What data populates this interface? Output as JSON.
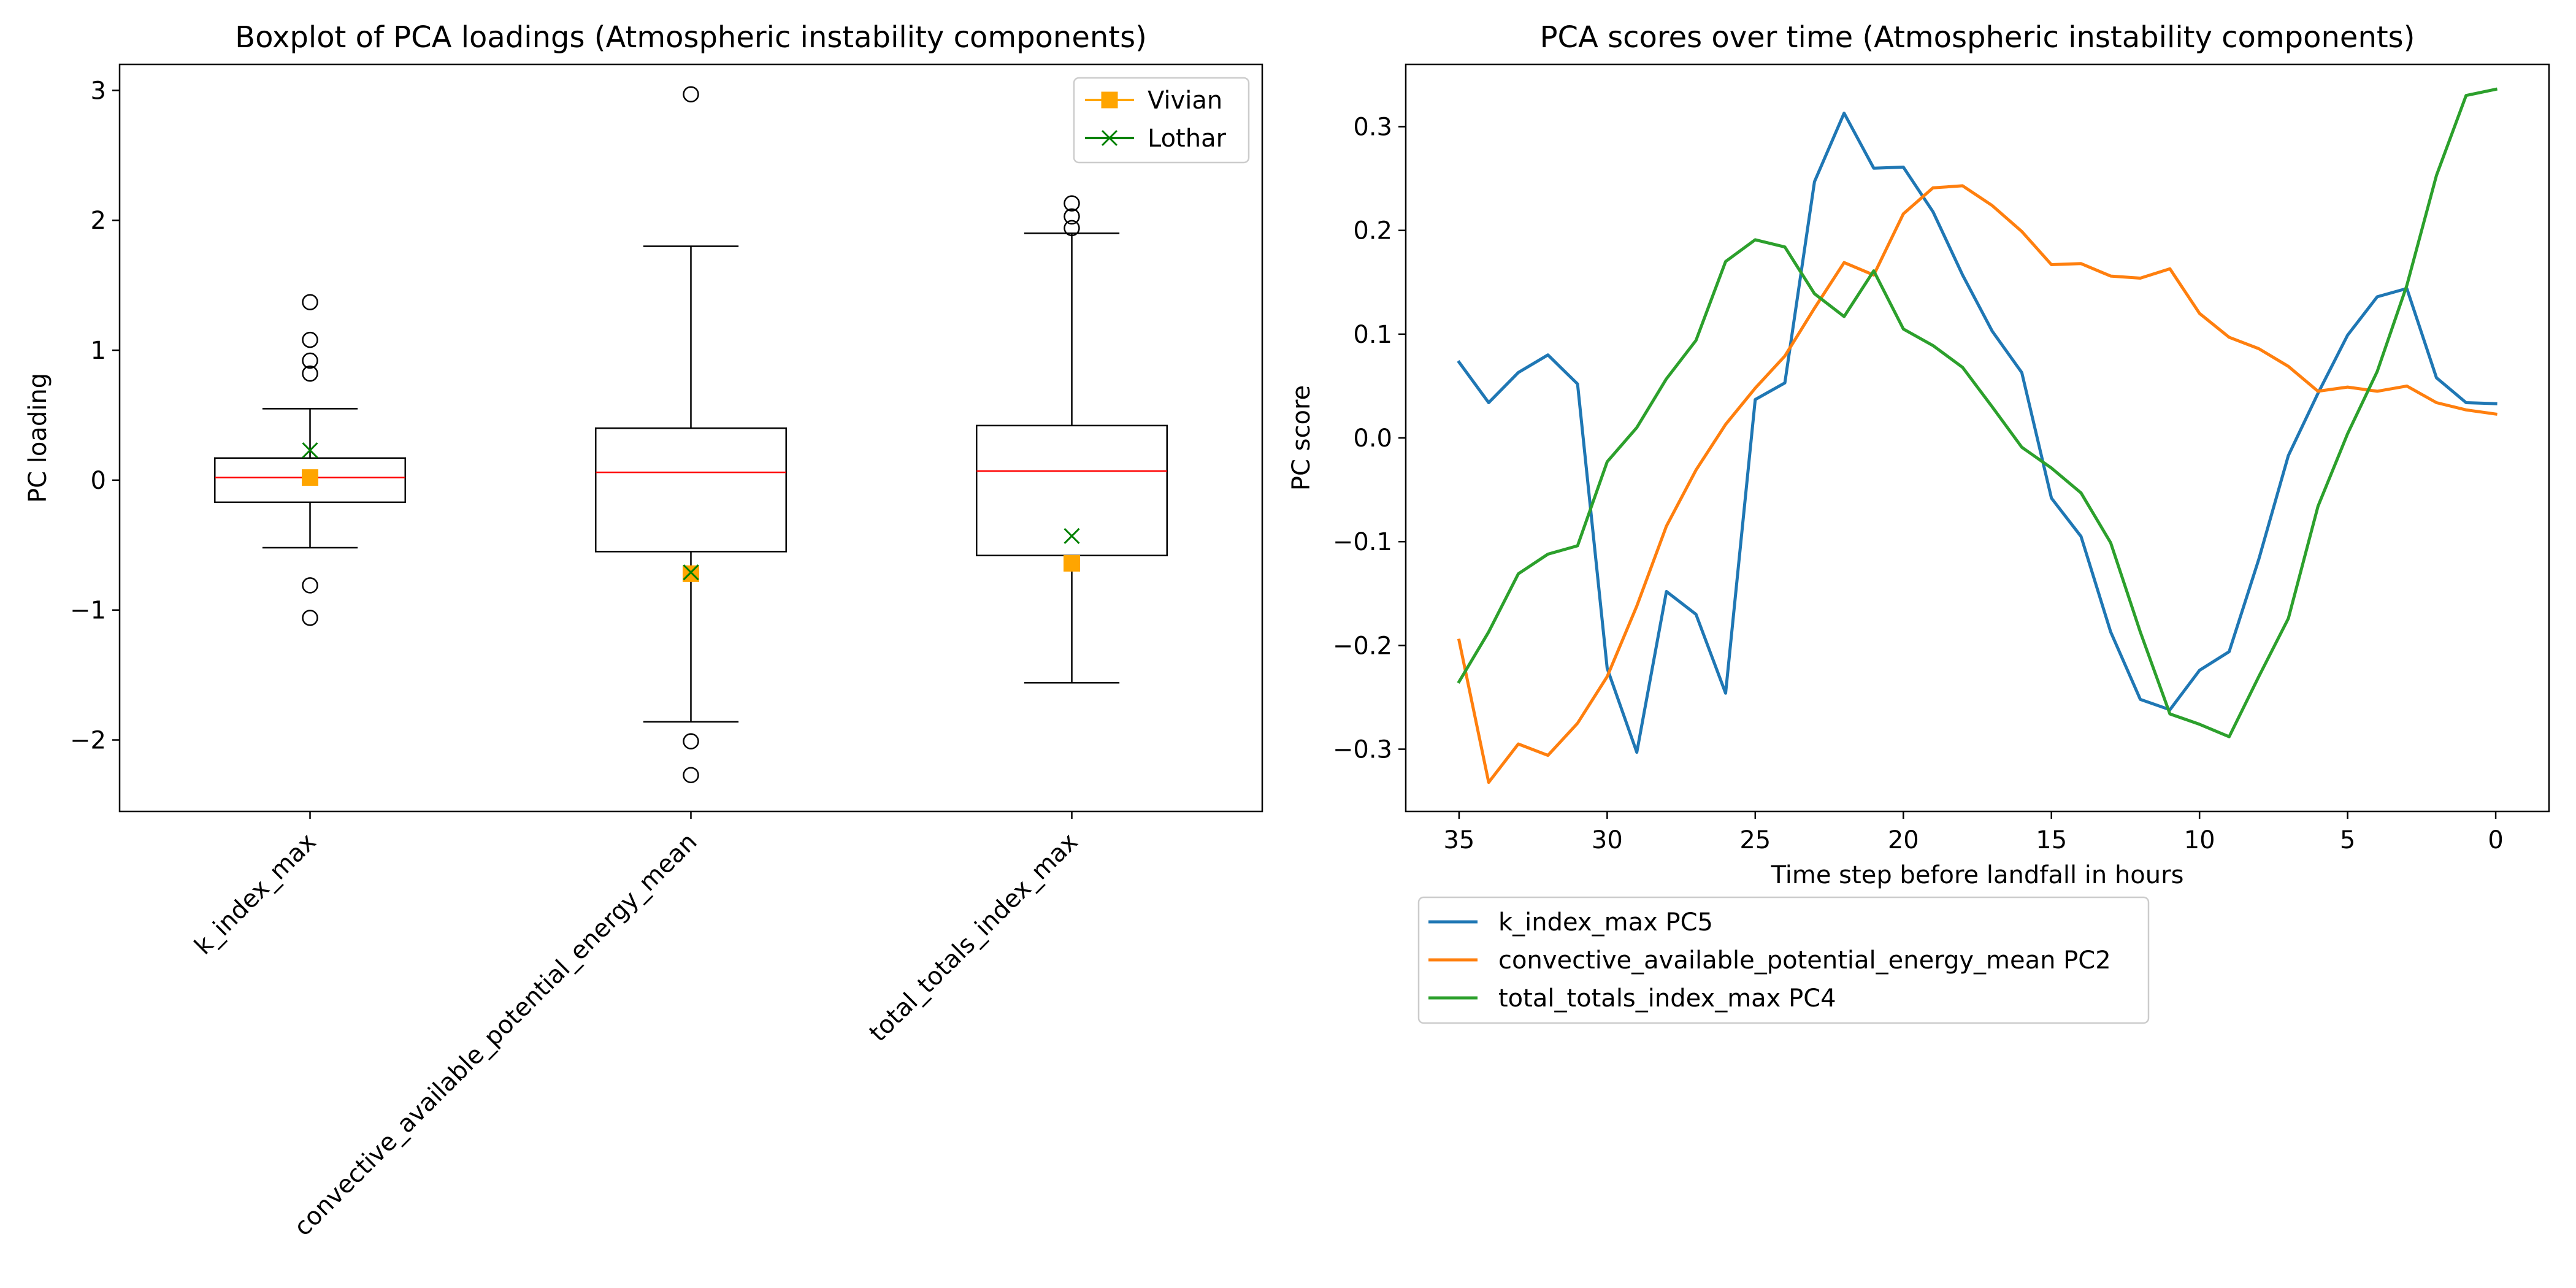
{
  "chart_data": [
    {
      "type": "box",
      "title": "Boxplot of PCA loadings (Atmospheric instability components)",
      "xlabel": "",
      "ylabel": "PC loading",
      "ylim": [
        -2.55,
        3.2
      ],
      "yticks": [
        -2,
        -1,
        0,
        1,
        2,
        3
      ],
      "ytick_labels": [
        "−2",
        "−1",
        "0",
        "1",
        "2",
        "3"
      ],
      "grid": false,
      "legend_position": "top-right",
      "categories": [
        "k_index_max",
        "convective_available_potential_energy_mean",
        "total_totals_index_max"
      ],
      "boxes": [
        {
          "whisker_low": -0.52,
          "q1": -0.17,
          "median": 0.02,
          "q3": 0.17,
          "whisker_high": 0.55,
          "fliers": [
            1.37,
            1.08,
            0.92,
            0.82,
            -0.81,
            -1.06
          ]
        },
        {
          "whisker_low": -1.86,
          "q1": -0.55,
          "median": 0.06,
          "q3": 0.4,
          "whisker_high": 1.8,
          "fliers": [
            2.97,
            -2.01,
            -2.27
          ]
        },
        {
          "whisker_low": -1.56,
          "q1": -0.58,
          "median": 0.07,
          "q3": 0.42,
          "whisker_high": 1.9,
          "fliers": [
            2.13,
            2.03,
            1.94
          ]
        }
      ],
      "series": [
        {
          "name": "Vivian",
          "color": "#ffa500",
          "marker": "square",
          "values": [
            0.02,
            -0.72,
            -0.64
          ]
        },
        {
          "name": "Lothar",
          "color": "#008000",
          "marker": "x",
          "values": [
            0.23,
            -0.71,
            -0.43
          ]
        }
      ],
      "colors": {
        "box": "#000000",
        "median": "#ff0000"
      }
    },
    {
      "type": "line",
      "title": "PCA scores over time (Atmospheric instability components)",
      "xlabel": "Time step before landfall in hours",
      "ylabel": "PC score",
      "xlim": [
        36.8,
        -1.8
      ],
      "ylim": [
        -0.36,
        0.36
      ],
      "xticks": [
        35,
        30,
        25,
        20,
        15,
        10,
        5,
        0
      ],
      "xtick_labels": [
        "35",
        "30",
        "25",
        "20",
        "15",
        "10",
        "5",
        "0"
      ],
      "yticks": [
        -0.3,
        -0.2,
        -0.1,
        0.0,
        0.1,
        0.2,
        0.3
      ],
      "ytick_labels": [
        "−0.3",
        "−0.2",
        "−0.1",
        "0.0",
        "0.1",
        "0.2",
        "0.3"
      ],
      "grid": false,
      "legend_position": "below",
      "x": [
        35,
        34,
        33,
        32,
        31,
        30,
        29,
        28,
        27,
        26,
        25,
        24,
        23,
        22,
        21,
        20,
        19,
        18,
        17,
        16,
        15,
        14,
        13,
        12,
        11,
        10,
        9,
        8,
        7,
        6,
        5,
        4,
        3,
        2,
        1,
        0
      ],
      "series": [
        {
          "name": "k_index_max PC5",
          "color": "#1f77b4",
          "values": [
            0.073,
            0.034,
            0.063,
            0.08,
            0.052,
            -0.222,
            -0.303,
            -0.148,
            -0.17,
            -0.246,
            0.037,
            0.053,
            0.247,
            0.313,
            0.26,
            0.261,
            0.218,
            0.157,
            0.103,
            0.063,
            -0.058,
            -0.095,
            -0.187,
            -0.252,
            -0.262,
            -0.224,
            -0.206,
            -0.117,
            -0.017,
            0.043,
            0.099,
            0.136,
            0.144,
            0.058,
            0.034,
            0.033
          ]
        },
        {
          "name": "convective_available_potential_energy_mean PC2",
          "color": "#ff7f0e",
          "values": [
            -0.195,
            -0.332,
            -0.295,
            -0.306,
            -0.275,
            -0.23,
            -0.162,
            -0.085,
            -0.031,
            0.013,
            0.048,
            0.079,
            0.125,
            0.169,
            0.157,
            0.216,
            0.241,
            0.243,
            0.224,
            0.199,
            0.167,
            0.168,
            0.156,
            0.154,
            0.163,
            0.12,
            0.097,
            0.086,
            0.069,
            0.045,
            0.049,
            0.045,
            0.05,
            0.034,
            0.027,
            0.023
          ]
        },
        {
          "name": "total_totals_index_max PC4",
          "color": "#2ca02c",
          "values": [
            -0.235,
            -0.187,
            -0.131,
            -0.112,
            -0.104,
            -0.023,
            0.01,
            0.057,
            0.094,
            0.17,
            0.191,
            0.184,
            0.139,
            0.117,
            0.161,
            0.105,
            0.089,
            0.068,
            0.03,
            -0.009,
            -0.029,
            -0.053,
            -0.101,
            -0.187,
            -0.266,
            -0.276,
            -0.288,
            -0.23,
            -0.174,
            -0.066,
            0.004,
            0.064,
            0.147,
            0.253,
            0.33,
            0.336
          ]
        }
      ]
    }
  ]
}
